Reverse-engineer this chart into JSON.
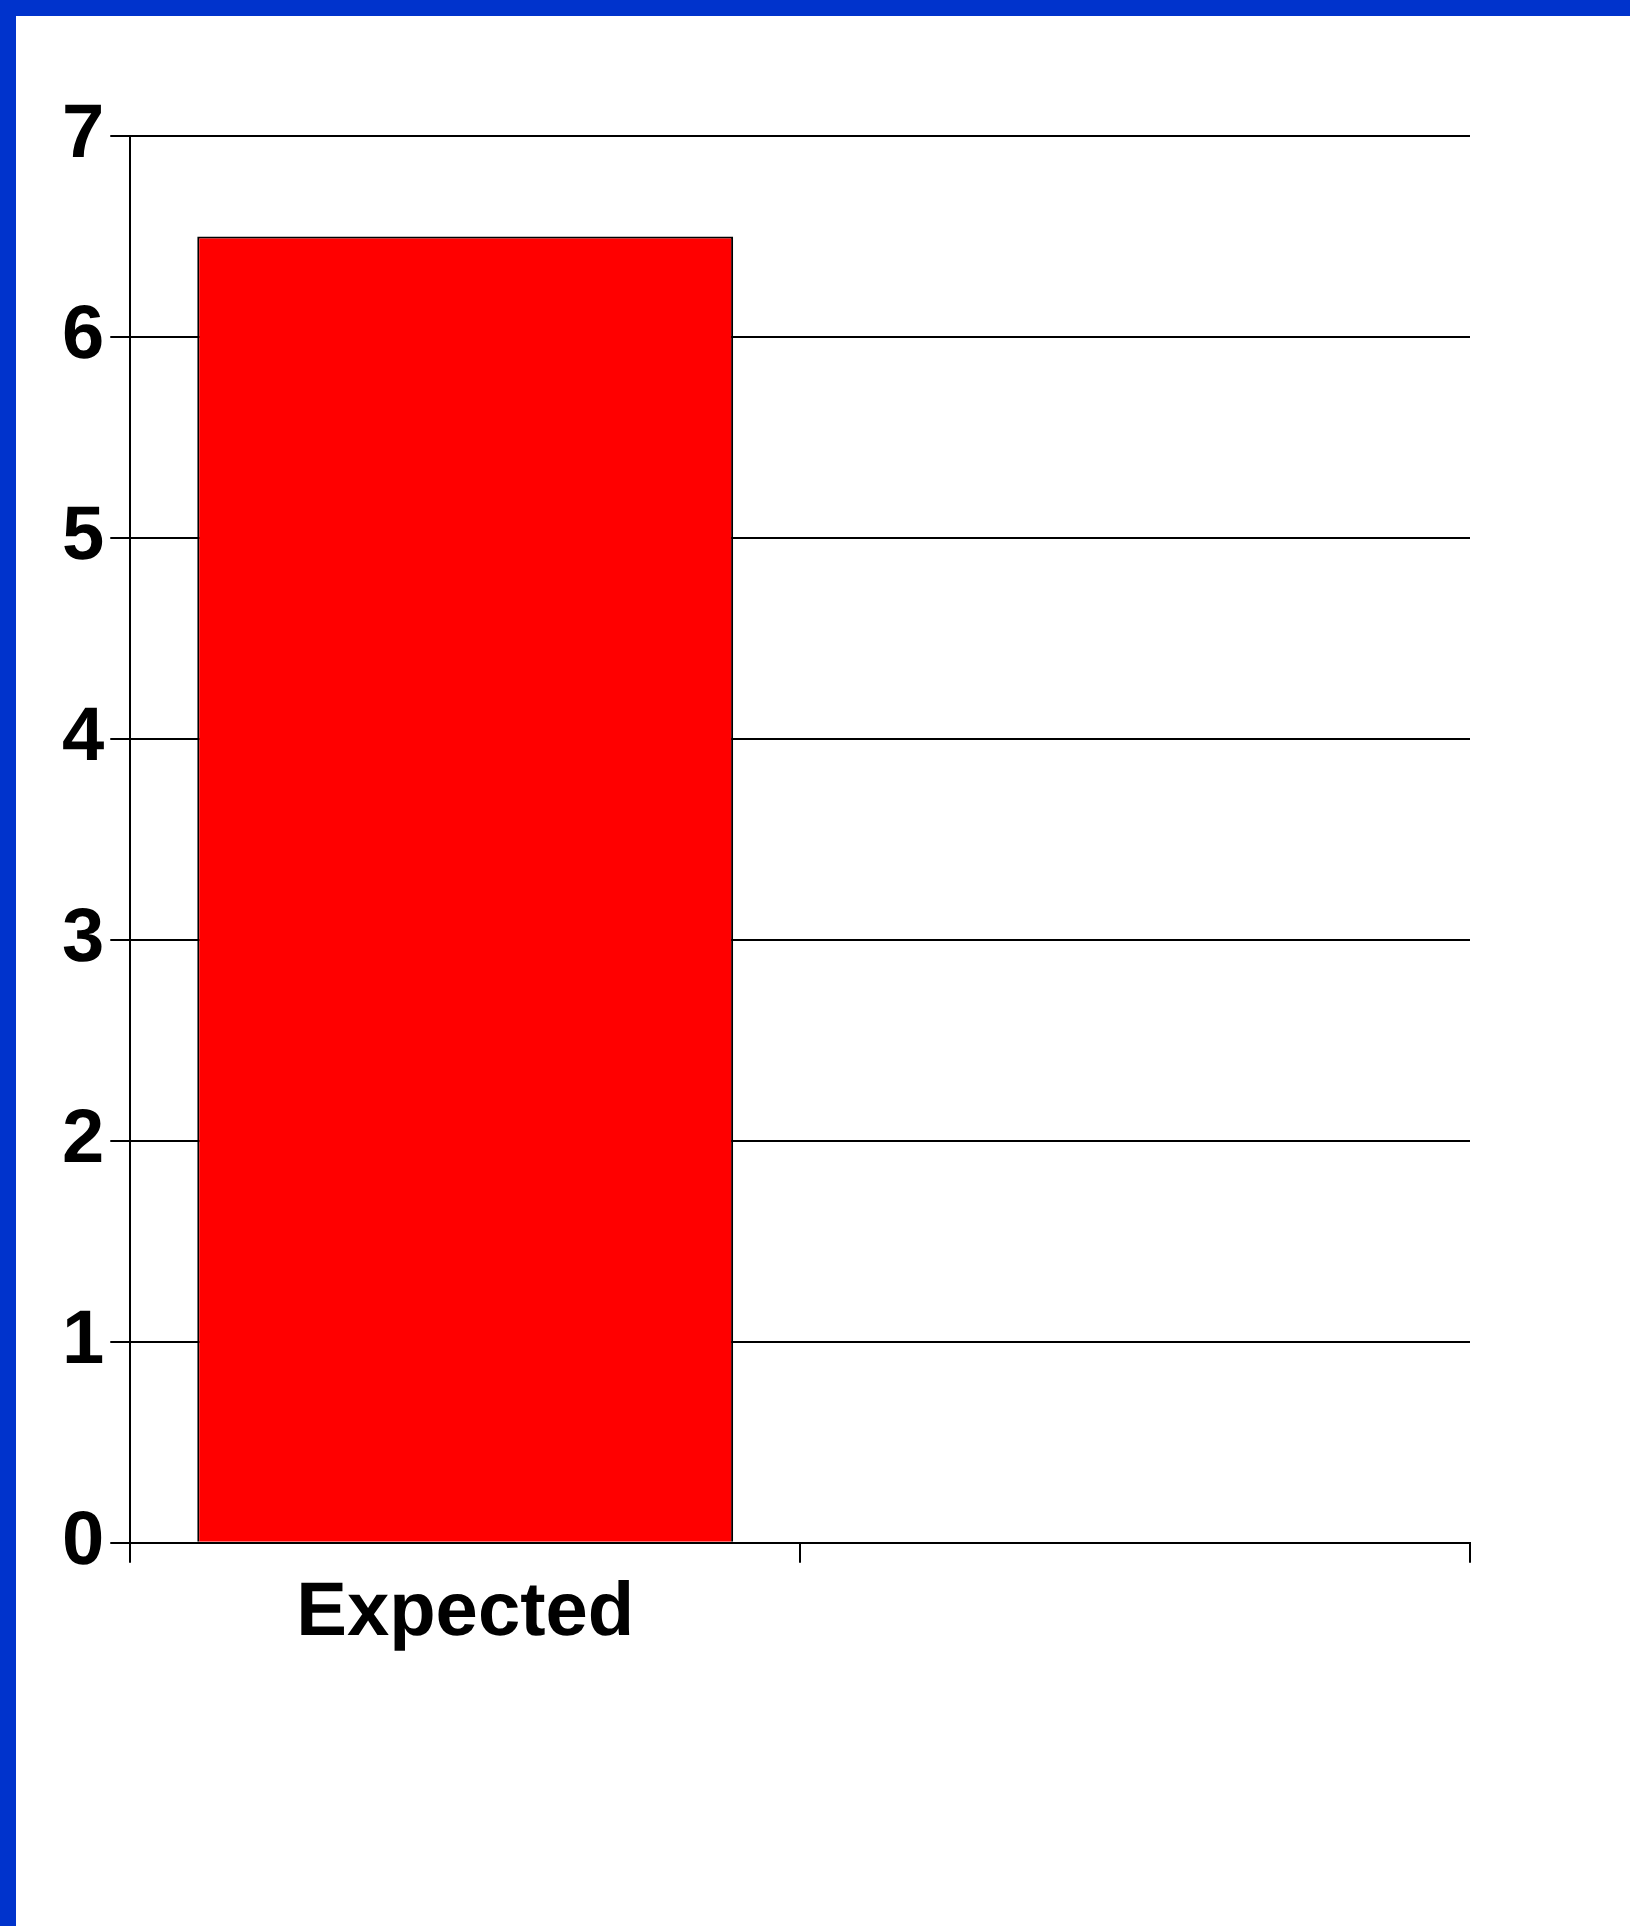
{
  "chart_data": {
    "type": "bar",
    "categories": [
      "Expected",
      null
    ],
    "values": [
      6.5,
      0
    ],
    "colors": [
      "#ff0000",
      "#009977"
    ],
    "ylim": [
      0,
      7
    ],
    "yticks": [
      0,
      1,
      2,
      3,
      4,
      5,
      6,
      7
    ],
    "grid": "y",
    "legend": false
  }
}
